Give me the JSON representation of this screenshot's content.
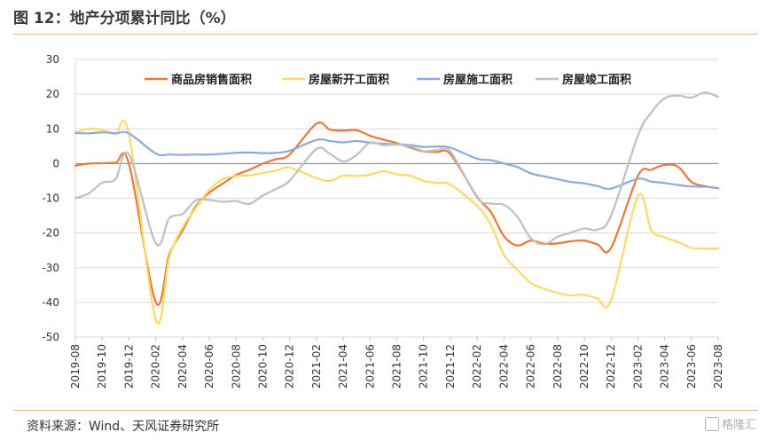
{
  "title": "图 12：地产分项累计同比（%）",
  "source": "资料来源：Wind、天风证券研究所",
  "watermark": "格隆汇",
  "chart_data": {
    "type": "line",
    "ylim": [
      -50,
      30
    ],
    "yticks": [
      -50,
      -40,
      -30,
      -20,
      -10,
      0,
      10,
      20,
      30
    ],
    "grid": "horizontal",
    "legend_position": "top",
    "x": [
      "2019-08",
      "2019-09",
      "2019-10",
      "2019-11",
      "2019-12",
      "2020-01",
      "2020-02",
      "2020-03",
      "2020-04",
      "2020-05",
      "2020-06",
      "2020-07",
      "2020-08",
      "2020-09",
      "2020-10",
      "2020-11",
      "2020-12",
      "2021-01",
      "2021-02",
      "2021-03",
      "2021-04",
      "2021-05",
      "2021-06",
      "2021-07",
      "2021-08",
      "2021-09",
      "2021-10",
      "2021-11",
      "2021-12",
      "2022-01",
      "2022-02",
      "2022-03",
      "2022-04",
      "2022-05",
      "2022-06",
      "2022-07",
      "2022-08",
      "2022-09",
      "2022-10",
      "2022-11",
      "2022-12",
      "2023-01",
      "2023-02",
      "2023-03",
      "2023-04",
      "2023-05",
      "2023-06",
      "2023-07",
      "2023-08"
    ],
    "xtick_labels": [
      "2019-08",
      "2019-10",
      "2019-12",
      "2020-02",
      "2020-04",
      "2020-06",
      "2020-08",
      "2020-10",
      "2020-12",
      "2021-02",
      "2021-04",
      "2021-06",
      "2021-08",
      "2021-10",
      "2021-12",
      "2022-02",
      "2022-04",
      "2022-06",
      "2022-08",
      "2022-10",
      "2022-12",
      "2023-02",
      "2023-04",
      "2023-06",
      "2023-08"
    ],
    "series": [
      {
        "name": "商品房销售面积",
        "color": "#e8793a",
        "values": [
          -0.6,
          0,
          0.1,
          0.2,
          0,
          null,
          -39.9,
          -26.3,
          -19.3,
          -12.3,
          -8.4,
          -5.8,
          -3.3,
          -1.8,
          0,
          1.3,
          2.6,
          null,
          11.5,
          9.8,
          9.5,
          9.6,
          8.0,
          6.9,
          5.9,
          4.6,
          3.5,
          3.3,
          2.7,
          null,
          -9.6,
          -13.8,
          -20.9,
          -23.6,
          -22.2,
          -23.1,
          -23.0,
          -22.4,
          -22.2,
          -23.3,
          -24.3,
          null,
          -3.6,
          -1.8,
          -0.4,
          -0.9,
          -5.3,
          -6.5,
          -7.1
        ]
      },
      {
        "name": "房屋新开工面积",
        "color": "#ffd966",
        "values": [
          8.9,
          10.0,
          9.7,
          8.6,
          8.5,
          null,
          -44.9,
          -27.2,
          -18.4,
          -12.8,
          -7.6,
          -4.5,
          -3.6,
          -3.4,
          -2.7,
          -2.0,
          -1.2,
          null,
          -4.2,
          -5.0,
          -3.5,
          -3.6,
          -3.2,
          -2.2,
          -3.1,
          -3.5,
          -5.0,
          -5.6,
          -6.1,
          null,
          -12.2,
          -17.5,
          -26.3,
          -30.6,
          -34.4,
          -36.1,
          -37.2,
          -38.0,
          -37.8,
          -38.9,
          -39.4,
          null,
          -9.4,
          -19.2,
          -21.2,
          -22.6,
          -24.3,
          -24.5,
          -24.4
        ]
      },
      {
        "name": "房屋施工面积",
        "color": "#8ea9db",
        "values": [
          8.8,
          8.7,
          9.0,
          8.7,
          8.7,
          null,
          2.9,
          2.6,
          2.5,
          2.6,
          2.6,
          2.8,
          3.1,
          3.2,
          3.0,
          3.1,
          3.7,
          null,
          6.8,
          6.5,
          6.1,
          6.5,
          6.0,
          5.7,
          5.6,
          5.3,
          4.8,
          4.9,
          4.6,
          null,
          1.4,
          1.0,
          0.0,
          -1.0,
          -2.8,
          -3.7,
          -4.5,
          -5.3,
          -5.7,
          -6.5,
          -7.2,
          null,
          -4.4,
          -5.2,
          -5.6,
          -6.2,
          -6.6,
          -6.7,
          -7.1
        ]
      },
      {
        "name": "房屋竣工面积",
        "color": "#bfbfbf",
        "values": [
          -10.0,
          -8.6,
          -5.5,
          -4.5,
          2.6,
          null,
          -22.9,
          -15.8,
          -14.5,
          -10.6,
          -10.5,
          -11.0,
          -10.8,
          -11.6,
          -9.2,
          -7.3,
          -4.9,
          null,
          4.2,
          2.8,
          0.6,
          2.5,
          6.0,
          5.3,
          5.5,
          4.9,
          3.6,
          3.8,
          3.5,
          null,
          -9.8,
          -11.5,
          -11.9,
          -15.3,
          -21.5,
          -23.3,
          -21.1,
          -19.9,
          -18.7,
          -19.0,
          -15.0,
          null,
          8.0,
          14.7,
          18.8,
          19.6,
          19.0,
          20.5,
          19.2
        ]
      }
    ]
  }
}
